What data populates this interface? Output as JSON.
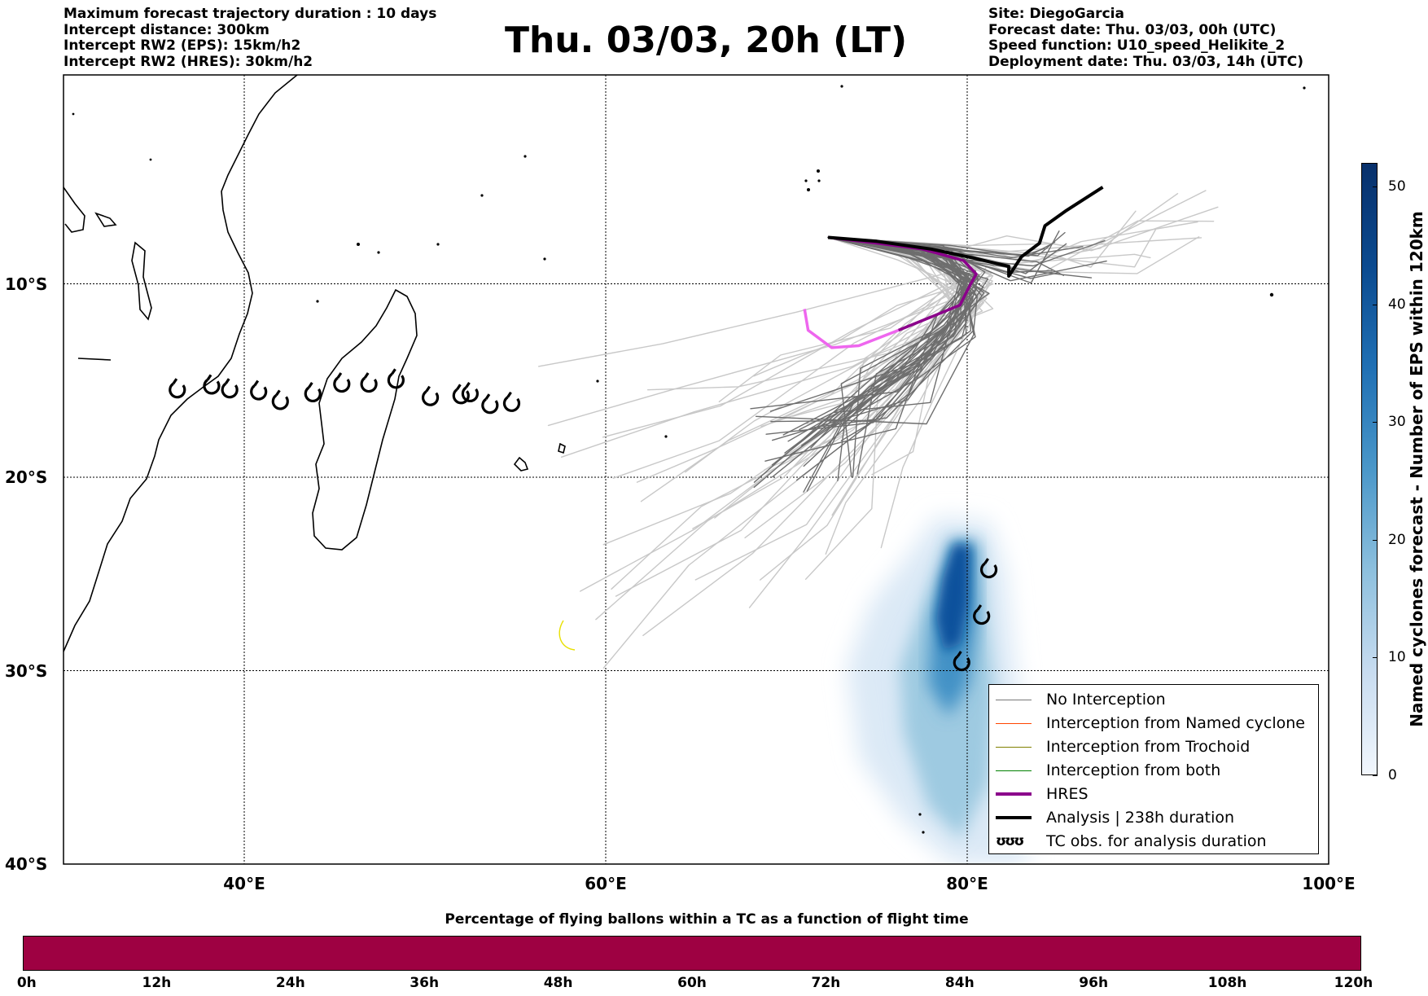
{
  "header_left": [
    "Maximum forecast trajectory duration : 10 days",
    "Intercept distance: 300km",
    "Intercept RW2 (EPS):  15km/h2",
    "Intercept RW2 (HRES): 30km/h2"
  ],
  "header_right": [
    "Site: DiegoGarcia",
    "Forecast date: Thu. 03/03, 00h (UTC)",
    "Speed function: U10_speed_Helikite_2",
    "Deployment date: Thu. 03/03, 14h (UTC)"
  ],
  "title": "Thu. 03/03, 20h (LT)",
  "map": {
    "lon_range": [
      30,
      100
    ],
    "lat_range": [
      -40,
      0.8
    ],
    "lon_ticks": [
      {
        "v": 40,
        "label": "40°E"
      },
      {
        "v": 60,
        "label": "60°E"
      },
      {
        "v": 80,
        "label": "80°E"
      },
      {
        "v": 100,
        "label": "100°E"
      }
    ],
    "lat_ticks": [
      {
        "v": -10,
        "label": "10°S"
      },
      {
        "v": -20,
        "label": "20°S"
      },
      {
        "v": -30,
        "label": "30°S"
      },
      {
        "v": -40,
        "label": "40°S"
      }
    ],
    "hres_track": [
      [
        71.0,
        -11.3
      ],
      [
        71.2,
        -12.4
      ],
      [
        72.5,
        -13.3
      ],
      [
        74.0,
        -13.2
      ],
      [
        76.2,
        -12.4
      ],
      [
        78.3,
        -11.6
      ],
      [
        79.6,
        -11.1
      ],
      [
        80.2,
        -10.0
      ],
      [
        80.5,
        -9.5
      ],
      [
        79.8,
        -8.8
      ],
      [
        77.5,
        -8.2
      ],
      [
        75.0,
        -7.9
      ],
      [
        72.3,
        -7.6
      ]
    ],
    "analysis_track": [
      [
        72.3,
        -7.6
      ],
      [
        75.0,
        -7.8
      ],
      [
        78.0,
        -8.2
      ],
      [
        80.5,
        -8.7
      ],
      [
        82.3,
        -9.1
      ],
      [
        82.3,
        -9.6
      ],
      [
        83.0,
        -8.6
      ],
      [
        84.0,
        -7.9
      ],
      [
        84.3,
        -7.0
      ],
      [
        85.5,
        -6.2
      ],
      [
        87.5,
        -5.0
      ]
    ],
    "tc_obs": [
      [
        36.3,
        -15.5
      ],
      [
        38.2,
        -15.3
      ],
      [
        39.2,
        -15.5
      ],
      [
        40.8,
        -15.6
      ],
      [
        42.0,
        -16.1
      ],
      [
        43.8,
        -15.7
      ],
      [
        45.4,
        -15.2
      ],
      [
        46.9,
        -15.2
      ],
      [
        48.4,
        -15.0
      ],
      [
        50.3,
        -15.9
      ],
      [
        52.0,
        -15.8
      ],
      [
        52.5,
        -15.7
      ],
      [
        53.6,
        -16.3
      ],
      [
        54.8,
        -16.2
      ],
      [
        81.2,
        -24.8
      ],
      [
        80.8,
        -27.2
      ],
      [
        79.7,
        -29.6
      ]
    ]
  },
  "legend": {
    "items": [
      {
        "label": "No Interception",
        "color": "#777777",
        "width": 1.5
      },
      {
        "label": "Interception from Named cyclone",
        "color": "#ff4500",
        "width": 1.5
      },
      {
        "label": "Interception from Trochoid",
        "color": "#808000",
        "width": 1.5
      },
      {
        "label": "Interception from both",
        "color": "#008000",
        "width": 1.5
      },
      {
        "label": "HRES",
        "color": "#8b008b",
        "width": 4
      },
      {
        "label": "Analysis | 238h duration",
        "color": "#000000",
        "width": 4
      }
    ],
    "tc_label": "TC obs. for analysis duration",
    "tc_symbol": "ʊʊʊ"
  },
  "cbar_v": {
    "label": "Named cyclones forecast - Number of EPS within 120km",
    "ticks": [
      0,
      10,
      20,
      30,
      40,
      50
    ],
    "max": 52
  },
  "cbar_h": {
    "title": "Percentage of flying ballons within a TC as a function of flight time",
    "ticks": [
      "0h",
      "12h",
      "24h",
      "36h",
      "48h",
      "60h",
      "72h",
      "84h",
      "96h",
      "108h",
      "120h"
    ],
    "color": "#9e0142"
  }
}
